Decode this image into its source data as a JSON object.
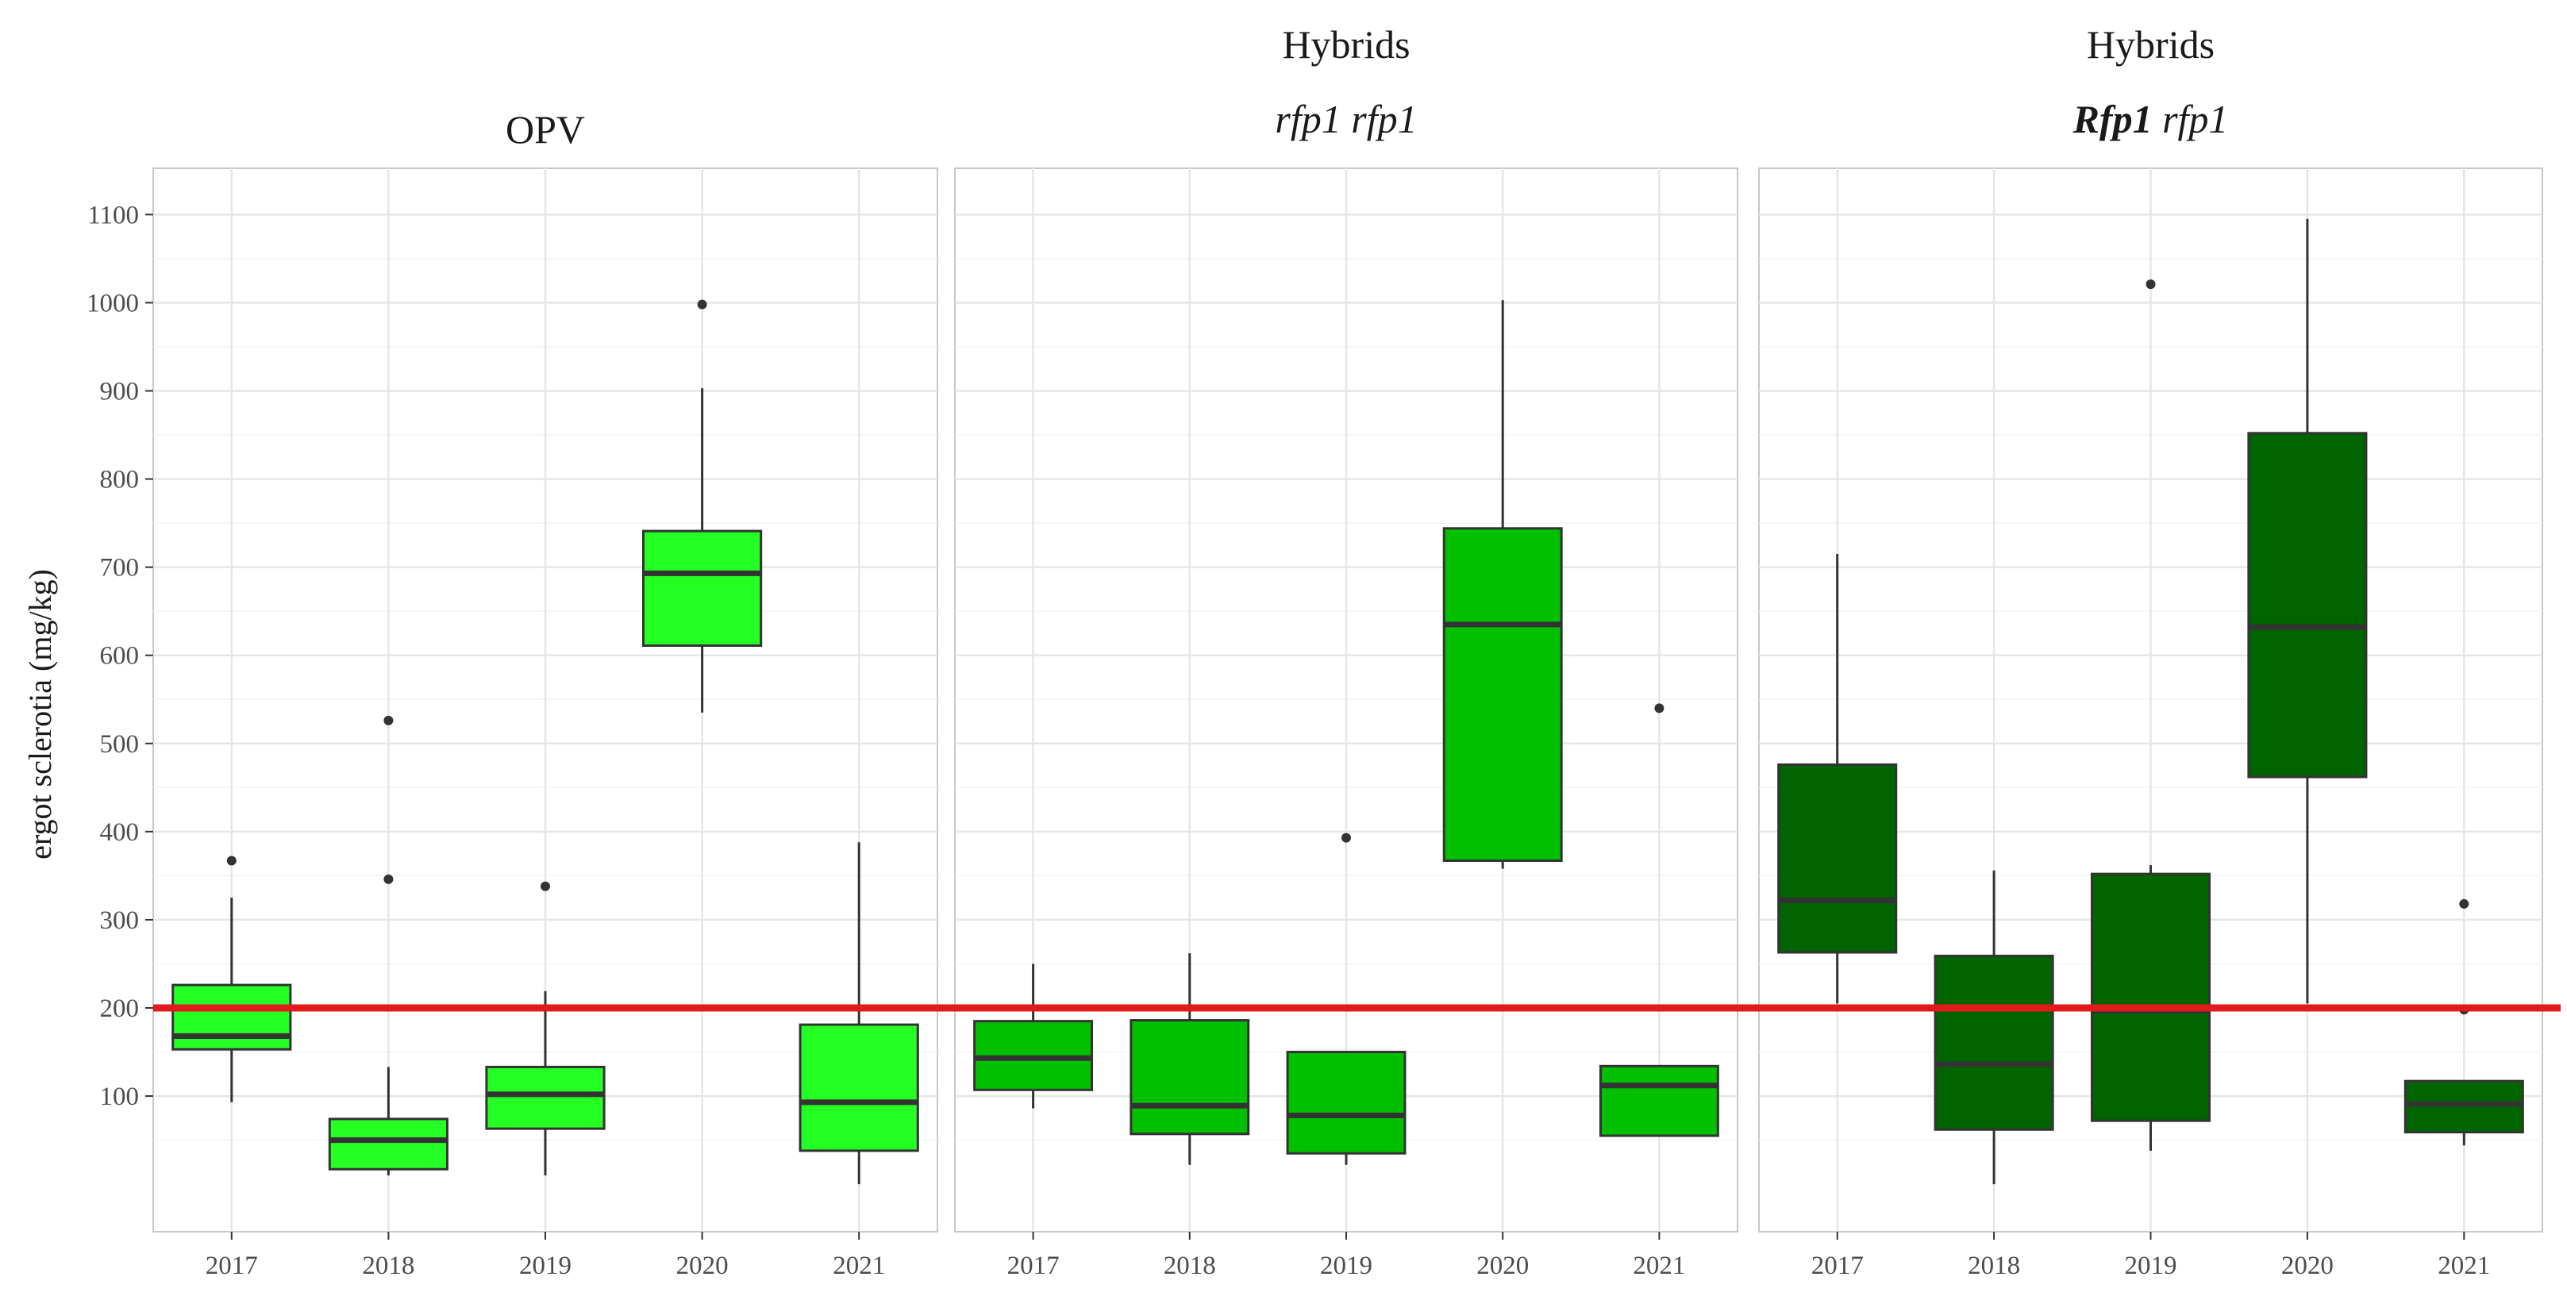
{
  "chart_data": {
    "type": "boxplot",
    "ylabel": "ergot sclerotia (mg/kg)",
    "y_ticks": [
      100,
      200,
      300,
      400,
      500,
      600,
      700,
      800,
      900,
      1000,
      1100
    ],
    "ylim": [
      -150,
      1155
    ],
    "reference_line": {
      "y": 200,
      "color": "#e31a1c"
    },
    "grid": true,
    "panels": [
      {
        "title_lines": [
          {
            "text": "OPV",
            "parts": [
              {
                "text": "OPV",
                "style": "normal"
              }
            ]
          }
        ],
        "fill": "#24ff24",
        "categories": [
          "2017",
          "2018",
          "2019",
          "2020",
          "2021"
        ],
        "boxes": [
          {
            "low": 93,
            "q1": 153,
            "median": 168,
            "q3": 226,
            "high": 325,
            "outliers": [
              367
            ]
          },
          {
            "low": 10,
            "q1": 17,
            "median": 50,
            "q3": 74,
            "high": 133,
            "outliers": [
              346,
              526
            ]
          },
          {
            "low": 10,
            "q1": 63,
            "median": 102,
            "q3": 133,
            "high": 219,
            "outliers": [
              338
            ]
          },
          {
            "low": 535,
            "q1": 611,
            "median": 693,
            "q3": 741,
            "high": 903,
            "outliers": [
              998
            ]
          },
          {
            "low": 0,
            "q1": 38,
            "median": 93,
            "q3": 181,
            "high": 388,
            "outliers": []
          }
        ]
      },
      {
        "title_lines": [
          {
            "text": "Hybrids",
            "parts": [
              {
                "text": "Hybrids",
                "style": "normal"
              }
            ]
          },
          {
            "text": "rfp1 rfp1",
            "parts": [
              {
                "text": "rfp1 rfp1",
                "style": "italic"
              }
            ]
          }
        ],
        "fill": "#00c000",
        "categories": [
          "2017",
          "2018",
          "2019",
          "2020",
          "2021"
        ],
        "boxes": [
          {
            "low": 86,
            "q1": 107,
            "median": 143,
            "q3": 185,
            "high": 250,
            "outliers": []
          },
          {
            "low": 22,
            "q1": 57,
            "median": 89,
            "q3": 186,
            "high": 262,
            "outliers": []
          },
          {
            "low": 22,
            "q1": 35,
            "median": 78,
            "q3": 150,
            "high": 150,
            "outliers": [
              393
            ]
          },
          {
            "low": 358,
            "q1": 367,
            "median": 635,
            "q3": 744,
            "high": 1003,
            "outliers": []
          },
          {
            "low": 55,
            "q1": 55,
            "median": 112,
            "q3": 134,
            "high": 134,
            "outliers": [
              540
            ]
          }
        ]
      },
      {
        "title_lines": [
          {
            "text": "Hybrids",
            "parts": [
              {
                "text": "Hybrids",
                "style": "normal"
              }
            ]
          },
          {
            "text": "Rfp1 rfp1",
            "parts": [
              {
                "text": "Rfp1",
                "style": "bold-italic"
              },
              {
                "text": " rfp1",
                "style": "italic"
              }
            ]
          }
        ],
        "fill": "#006400",
        "categories": [
          "2017",
          "2018",
          "2019",
          "2020",
          "2021"
        ],
        "boxes": [
          {
            "low": 205,
            "q1": 263,
            "median": 322,
            "q3": 476,
            "high": 715,
            "outliers": []
          },
          {
            "low": 0,
            "q1": 62,
            "median": 136,
            "q3": 259,
            "high": 356,
            "outliers": []
          },
          {
            "low": 38,
            "q1": 72,
            "median": 197,
            "q3": 352,
            "high": 362,
            "outliers": [
              1021
            ]
          },
          {
            "low": 205,
            "q1": 462,
            "median": 632,
            "q3": 852,
            "high": 1095,
            "outliers": []
          },
          {
            "low": 44,
            "q1": 59,
            "median": 91,
            "q3": 117,
            "high": 117,
            "outliers": [
              318,
              198
            ]
          }
        ]
      }
    ]
  }
}
